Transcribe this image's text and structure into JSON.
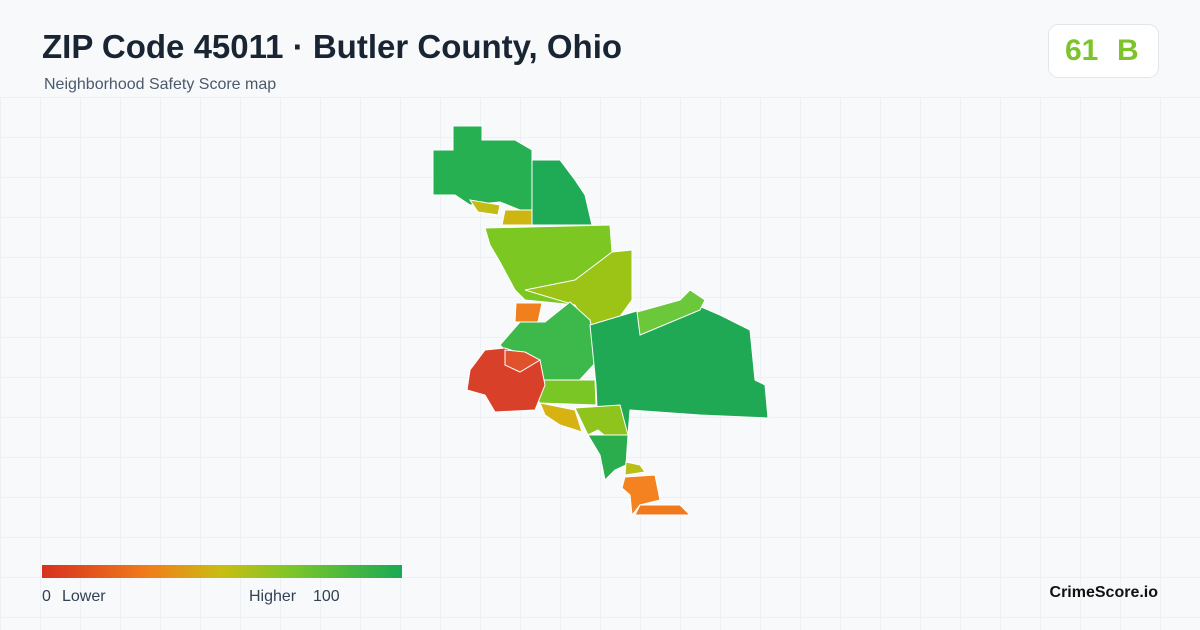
{
  "header": {
    "title": "ZIP Code 45011 · Butler County, Ohio",
    "subtitle": "Neighborhood Safety Score map",
    "score": "61",
    "grade": "B"
  },
  "legend": {
    "min": "0",
    "min_label": "Lower",
    "max_label": "Higher",
    "max": "100"
  },
  "brand": "CrimeScore.io"
}
